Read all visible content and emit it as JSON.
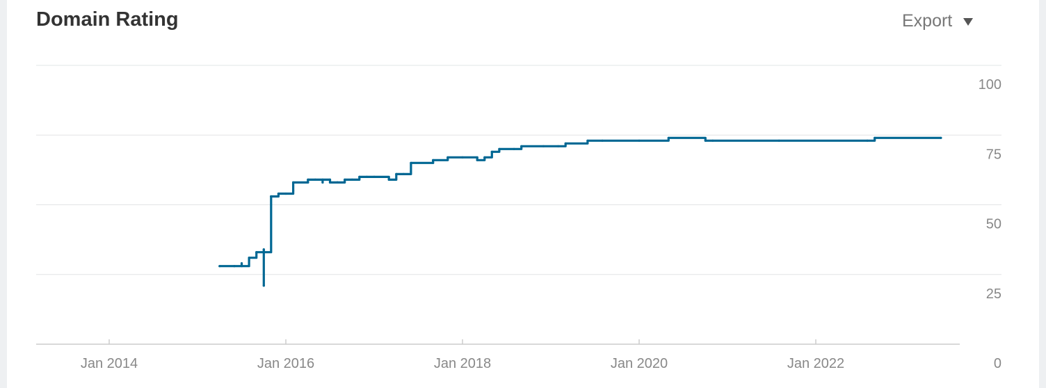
{
  "header": {
    "title": "Domain Rating",
    "export_label": "Export",
    "export_icon": "chevron-down-icon"
  },
  "colors": {
    "series": "#006793",
    "grid": "#e2e4e6",
    "axis": "#cccccc",
    "tick_text": "#888888"
  },
  "chart_data": {
    "type": "line",
    "title": "Domain Rating",
    "xlabel": "",
    "ylabel": "",
    "x_ticks": [
      "Jan 2014",
      "Jan 2016",
      "Jan 2018",
      "Jan 2020",
      "Jan 2022"
    ],
    "y_ticks": [
      "0",
      "25",
      "50",
      "75",
      "100"
    ],
    "ylim": [
      0,
      100
    ],
    "xlim": [
      "2013-03",
      "2023-08"
    ],
    "grid": true,
    "legend": "none",
    "series": [
      {
        "step": true,
        "x": [
          "2015-04",
          "2015-06",
          "2015-07",
          "2015-07",
          "2015-08",
          "2015-08",
          "2015-09",
          "2015-10",
          "2015-10",
          "2015-10",
          "2015-10",
          "2015-11",
          "2015-11",
          "2015-11",
          "2015-12",
          "2016-01",
          "2016-02",
          "2016-02",
          "2016-04",
          "2016-04",
          "2016-05",
          "2016-06",
          "2016-06",
          "2016-07",
          "2016-07",
          "2016-08",
          "2016-08",
          "2016-09",
          "2016-10",
          "2016-11",
          "2016-12",
          "2017-01",
          "2017-03",
          "2017-04",
          "2017-05",
          "2017-06",
          "2017-06",
          "2017-09",
          "2017-09",
          "2017-11",
          "2018-01",
          "2018-03",
          "2018-03",
          "2018-04",
          "2018-05",
          "2018-05",
          "2018-06",
          "2018-08",
          "2018-09",
          "2018-12",
          "2019-02",
          "2019-03",
          "2019-06",
          "2019-08",
          "2020-01",
          "2020-05",
          "2020-10",
          "2020-11",
          "2021-08",
          "2022-08",
          "2022-09",
          "2023-06"
        ],
        "y": [
          28,
          28,
          29,
          28,
          30,
          31,
          33,
          33,
          21,
          34,
          33,
          53,
          53,
          53,
          54,
          54,
          55,
          58,
          58,
          59,
          59,
          58,
          59,
          59,
          58,
          58,
          58,
          59,
          59,
          60,
          60,
          60,
          59,
          61,
          61,
          62,
          65,
          65,
          66,
          67,
          67,
          67,
          66,
          67,
          69,
          69,
          70,
          70,
          71,
          71,
          71,
          72,
          73,
          73,
          73,
          74,
          73,
          73,
          73,
          73,
          74,
          74
        ]
      }
    ]
  }
}
